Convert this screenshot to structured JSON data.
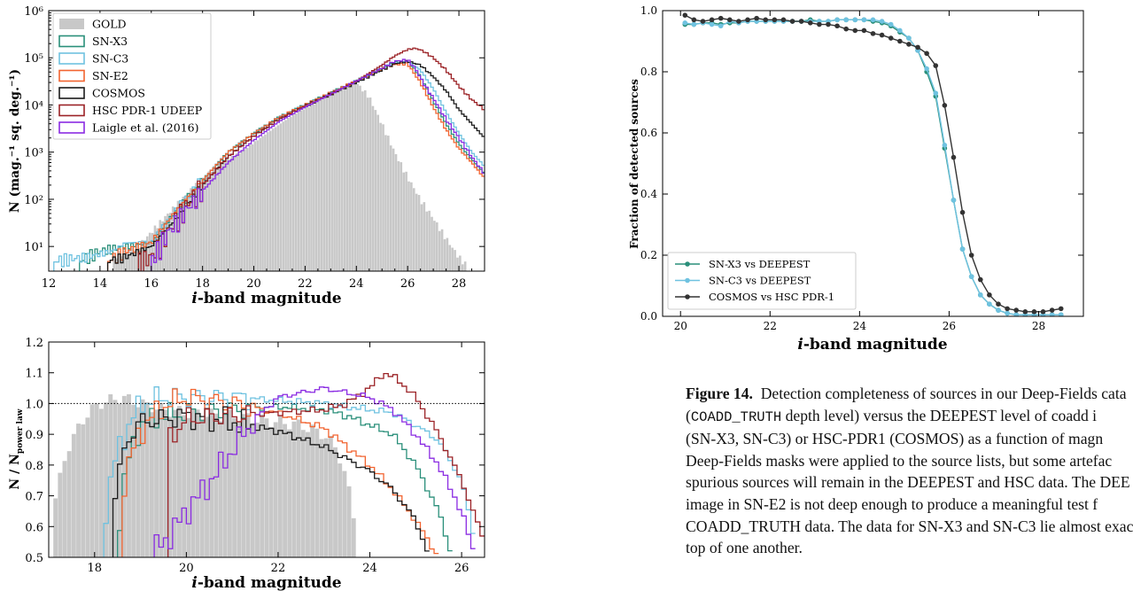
{
  "chart_data": [
    {
      "id": "histogram",
      "type": "area",
      "xlabel_pre": "i",
      "xlabel_post": "-band magnitude",
      "ylabel": "N (mag.⁻¹ sq. deg.⁻¹)",
      "xlim": [
        12,
        29
      ],
      "ylim": [
        3,
        1000000
      ],
      "y_scale": "log",
      "xticks": [
        12,
        14,
        16,
        18,
        20,
        22,
        24,
        26,
        28
      ],
      "yticks": [
        {
          "value": 10,
          "label": "10¹"
        },
        {
          "value": 100,
          "label": "10²"
        },
        {
          "value": 1000,
          "label": "10³"
        },
        {
          "value": 10000,
          "label": "10⁴"
        },
        {
          "value": 100000,
          "label": "10⁵"
        },
        {
          "value": 1000000,
          "label": "10⁶"
        }
      ],
      "legend_position": "top-left",
      "legend": [
        {
          "label": "GOLD",
          "color": "#c8c8c8",
          "style": "filled"
        },
        {
          "label": "SN-X3",
          "color": "#2a8f7a",
          "style": "step"
        },
        {
          "label": "SN-C3",
          "color": "#6fc2e0",
          "style": "step"
        },
        {
          "label": "SN-E2",
          "color": "#f26430",
          "style": "step"
        },
        {
          "label": "COSMOS",
          "color": "#1a1a1a",
          "style": "step"
        },
        {
          "label": "HSC PDR-1 UDEEP",
          "color": "#9b2226",
          "style": "step"
        },
        {
          "label": "Laigle et al. (2016)",
          "color": "#8a2be2",
          "style": "step"
        }
      ],
      "series": [
        {
          "name": "GOLD",
          "x": [
            14.5,
            15.5,
            16.5,
            17.5,
            18.5,
            19.5,
            20.5,
            21.5,
            22.5,
            23.0,
            23.5,
            24.0,
            24.5,
            25.0,
            25.5,
            26.0,
            26.5,
            27.0,
            27.5,
            28.0,
            28.3
          ],
          "y": [
            6,
            10,
            40,
            150,
            500,
            1000,
            2500,
            6000,
            12000,
            18000,
            25000,
            30000,
            15000,
            4000,
            1000,
            300,
            100,
            40,
            15,
            6,
            4
          ]
        },
        {
          "name": "SN-X3",
          "x": [
            13.2,
            14.0,
            15.0,
            16.0,
            17.0,
            18.0,
            19.0,
            20.0,
            21.0,
            22.0,
            23.0,
            24.0,
            25.0,
            25.5,
            26.0,
            26.5,
            27.0,
            27.5,
            28.0,
            28.5,
            29.0
          ],
          "y": [
            5,
            8,
            10,
            12,
            60,
            250,
            1000,
            2500,
            5500,
            10000,
            18000,
            32000,
            60000,
            80000,
            85000,
            40000,
            12000,
            4000,
            1500,
            700,
            350
          ]
        },
        {
          "name": "SN-C3",
          "x": [
            12.2,
            13.5,
            14.5,
            15.0,
            16.0,
            17.0,
            18.0,
            19.0,
            20.0,
            21.0,
            22.0,
            23.0,
            24.0,
            25.0,
            25.5,
            26.0,
            26.5,
            27.0,
            27.5,
            28.0,
            28.5,
            29.0
          ],
          "y": [
            5,
            6,
            8,
            12,
            12,
            60,
            250,
            1000,
            2500,
            5500,
            10000,
            18000,
            32000,
            60000,
            78000,
            85000,
            55000,
            22000,
            7000,
            2500,
            1000,
            500
          ]
        },
        {
          "name": "SN-E2",
          "x": [
            14.3,
            15.0,
            16.0,
            17.0,
            18.0,
            19.0,
            20.0,
            21.0,
            22.0,
            23.0,
            24.0,
            25.0,
            25.5,
            26.0,
            26.5,
            27.0,
            27.5,
            28.0,
            28.5,
            29.0
          ],
          "y": [
            5,
            8,
            12,
            60,
            250,
            1000,
            2500,
            5500,
            10000,
            18000,
            32000,
            58000,
            72000,
            75000,
            30000,
            9000,
            3000,
            1200,
            600,
            280
          ]
        },
        {
          "name": "COSMOS",
          "x": [
            14.3,
            15.0,
            16.0,
            17.0,
            18.0,
            19.0,
            20.0,
            21.0,
            22.0,
            23.0,
            24.0,
            25.0,
            25.5,
            26.0,
            26.5,
            27.0,
            27.5,
            28.0,
            28.5,
            29.0
          ],
          "y": [
            5,
            6,
            10,
            40,
            200,
            800,
            2200,
            5000,
            9500,
            17000,
            30000,
            55000,
            75000,
            85000,
            70000,
            40000,
            20000,
            8000,
            4000,
            2000
          ]
        },
        {
          "name": "HSC PDR-1 UDEEP",
          "x": [
            15.5,
            16.0,
            16.5,
            17.0,
            18.0,
            19.0,
            20.0,
            21.0,
            22.0,
            23.0,
            24.0,
            25.0,
            25.5,
            26.0,
            26.3,
            26.6,
            27.0,
            27.5,
            28.0,
            28.5,
            29.0
          ],
          "y": [
            5,
            6,
            15,
            40,
            200,
            800,
            2200,
            5000,
            9500,
            17000,
            32000,
            70000,
            110000,
            150000,
            160000,
            140000,
            100000,
            55000,
            25000,
            13000,
            8000
          ]
        },
        {
          "name": "Laigle et al. (2016)",
          "x": [
            16.0,
            16.5,
            17.0,
            18.0,
            19.0,
            20.0,
            21.0,
            22.0,
            23.0,
            24.0,
            25.0,
            25.5,
            26.0,
            26.3,
            26.6,
            27.0,
            27.5,
            28.0,
            28.5,
            29.0
          ],
          "y": [
            5,
            15,
            35,
            150,
            600,
            1800,
            4500,
            9000,
            17000,
            32000,
            60000,
            85000,
            90000,
            60000,
            30000,
            14000,
            5000,
            2000,
            800,
            350
          ]
        }
      ]
    },
    {
      "id": "ratio",
      "type": "area",
      "xlabel_pre": "i",
      "xlabel_post": "-band magnitude",
      "ylabel": "N / N",
      "ylabel_sub": "power law",
      "xlim": [
        17,
        26.5
      ],
      "ylim": [
        0.5,
        1.2
      ],
      "xticks": [
        18,
        20,
        22,
        24,
        26
      ],
      "yticks": [
        0.5,
        0.6,
        0.7,
        0.8,
        0.9,
        1.0,
        1.1,
        1.2
      ],
      "reference_line": 1.0,
      "series": [
        {
          "name": "GOLD",
          "x": [
            17.1,
            17.4,
            17.8,
            18.1,
            18.6,
            19.0,
            19.5,
            20.0,
            21.0,
            22.0,
            22.5,
            23.0,
            23.3,
            23.5,
            23.7
          ],
          "y": [
            0.66,
            0.85,
            0.96,
            1.0,
            1.02,
            1.0,
            0.98,
            0.97,
            0.96,
            0.94,
            0.93,
            0.9,
            0.85,
            0.75,
            0.6
          ]
        },
        {
          "name": "SN-X3",
          "x": [
            18.5,
            18.7,
            19.0,
            19.5,
            20.0,
            21.0,
            22.0,
            23.0,
            23.5,
            24.0,
            24.5,
            25.0,
            25.5,
            25.8
          ],
          "y": [
            0.58,
            0.8,
            0.93,
            0.96,
            0.97,
            0.98,
            0.99,
            0.98,
            0.96,
            0.93,
            0.9,
            0.8,
            0.65,
            0.5
          ]
        },
        {
          "name": "SN-C3",
          "x": [
            18.2,
            18.5,
            19.0,
            19.5,
            20.0,
            21.0,
            22.0,
            23.0,
            24.0,
            24.5,
            25.0,
            25.5,
            26.0,
            26.3
          ],
          "y": [
            0.62,
            0.85,
            1.0,
            1.02,
            1.02,
            1.02,
            1.01,
            1.0,
            0.98,
            0.97,
            0.93,
            0.88,
            0.75,
            0.55
          ]
        },
        {
          "name": "SN-E2",
          "x": [
            18.6,
            18.9,
            19.2,
            19.6,
            20.0,
            21.0,
            22.0,
            23.0,
            23.5,
            24.0,
            24.5,
            25.0,
            25.5
          ],
          "y": [
            0.72,
            0.88,
            0.95,
            1.0,
            1.02,
            1.0,
            0.97,
            0.92,
            0.86,
            0.8,
            0.72,
            0.62,
            0.5
          ]
        },
        {
          "name": "COSMOS",
          "x": [
            18.4,
            18.7,
            19.0,
            19.5,
            20.0,
            21.0,
            22.0,
            23.0,
            23.5,
            24.0,
            24.5,
            25.0,
            25.3
          ],
          "y": [
            0.67,
            0.88,
            0.94,
            0.95,
            0.96,
            0.94,
            0.91,
            0.86,
            0.82,
            0.78,
            0.72,
            0.62,
            0.5
          ]
        },
        {
          "name": "HSC PDR-1 UDEEP",
          "x": [
            19.6,
            20.0,
            21.0,
            22.0,
            23.0,
            23.5,
            24.0,
            24.3,
            24.6,
            25.0,
            25.5,
            26.0,
            26.5
          ],
          "y": [
            0.88,
            0.95,
            0.96,
            0.97,
            0.98,
            1.0,
            1.05,
            1.1,
            1.08,
            1.02,
            0.9,
            0.75,
            0.55
          ]
        },
        {
          "name": "Laigle et al. (2016)",
          "x": [
            19.3,
            19.7,
            20.0,
            20.5,
            21.0,
            21.5,
            22.0,
            23.0,
            24.0,
            24.5,
            25.0,
            25.5,
            26.0,
            26.3
          ],
          "y": [
            0.52,
            0.58,
            0.65,
            0.74,
            0.85,
            0.95,
            1.02,
            1.05,
            1.02,
            0.98,
            0.9,
            0.8,
            0.65,
            0.5
          ]
        }
      ]
    },
    {
      "id": "completeness",
      "type": "line",
      "xlabel_pre": "i",
      "xlabel_post": "-band magnitude",
      "ylabel": "Fraction of detected sources",
      "xlim": [
        19.6,
        29.0
      ],
      "ylim": [
        0.0,
        1.0
      ],
      "xticks": [
        20,
        22,
        24,
        26,
        28
      ],
      "yticks": [
        0.0,
        0.2,
        0.4,
        0.6,
        0.8,
        1.0
      ],
      "legend_position": "lower-left",
      "series": [
        {
          "name": "SN-X3 vs DEEPEST",
          "color": "#2a8f7a",
          "x": [
            20.1,
            20.3,
            20.5,
            20.7,
            20.9,
            21.1,
            21.3,
            21.5,
            21.7,
            21.9,
            22.1,
            22.3,
            22.5,
            22.7,
            22.9,
            23.1,
            23.3,
            23.5,
            23.7,
            23.9,
            24.1,
            24.3,
            24.5,
            24.7,
            24.9,
            25.1,
            25.3,
            25.5,
            25.7,
            25.9,
            26.1,
            26.3,
            26.5,
            26.7,
            26.9,
            27.1,
            27.3,
            27.5,
            27.7,
            27.9,
            28.1,
            28.3,
            28.5
          ],
          "y": [
            0.955,
            0.955,
            0.96,
            0.96,
            0.955,
            0.96,
            0.96,
            0.965,
            0.965,
            0.965,
            0.965,
            0.965,
            0.965,
            0.965,
            0.97,
            0.965,
            0.965,
            0.97,
            0.97,
            0.97,
            0.97,
            0.965,
            0.96,
            0.95,
            0.93,
            0.91,
            0.87,
            0.8,
            0.72,
            0.55,
            0.38,
            0.22,
            0.13,
            0.07,
            0.04,
            0.02,
            0.01,
            0.005,
            0.005,
            0.005,
            0.005,
            0.005,
            0.005
          ]
        },
        {
          "name": "SN-C3 vs DEEPEST",
          "color": "#6fc2e0",
          "x": [
            20.1,
            20.3,
            20.5,
            20.7,
            20.9,
            21.1,
            21.3,
            21.5,
            21.7,
            21.9,
            22.1,
            22.3,
            22.5,
            22.7,
            22.9,
            23.1,
            23.3,
            23.5,
            23.7,
            23.9,
            24.1,
            24.3,
            24.5,
            24.7,
            24.9,
            25.1,
            25.3,
            25.5,
            25.7,
            25.9,
            26.1,
            26.3,
            26.5,
            26.7,
            26.9,
            27.1,
            27.3,
            27.5,
            27.7,
            27.9,
            28.1,
            28.3,
            28.5
          ],
          "y": [
            0.96,
            0.955,
            0.96,
            0.955,
            0.95,
            0.965,
            0.96,
            0.965,
            0.965,
            0.965,
            0.965,
            0.965,
            0.965,
            0.965,
            0.965,
            0.965,
            0.965,
            0.97,
            0.97,
            0.97,
            0.97,
            0.97,
            0.965,
            0.955,
            0.935,
            0.91,
            0.87,
            0.81,
            0.73,
            0.56,
            0.38,
            0.22,
            0.13,
            0.07,
            0.04,
            0.02,
            0.01,
            0.005,
            0.005,
            0.005,
            0.005,
            0.005,
            0.005
          ]
        },
        {
          "name": "COSMOS vs HSC PDR-1",
          "color": "#333333",
          "x": [
            20.1,
            20.3,
            20.5,
            20.7,
            20.9,
            21.1,
            21.3,
            21.5,
            21.7,
            21.9,
            22.1,
            22.3,
            22.5,
            22.7,
            22.9,
            23.1,
            23.3,
            23.5,
            23.7,
            23.9,
            24.1,
            24.3,
            24.5,
            24.7,
            24.9,
            25.1,
            25.3,
            25.5,
            25.7,
            25.9,
            26.1,
            26.3,
            26.5,
            26.7,
            26.9,
            27.1,
            27.3,
            27.5,
            27.7,
            27.9,
            28.1,
            28.3,
            28.5
          ],
          "y": [
            0.985,
            0.97,
            0.965,
            0.97,
            0.975,
            0.97,
            0.965,
            0.97,
            0.975,
            0.97,
            0.97,
            0.97,
            0.965,
            0.965,
            0.96,
            0.955,
            0.955,
            0.95,
            0.94,
            0.935,
            0.935,
            0.925,
            0.92,
            0.91,
            0.9,
            0.89,
            0.88,
            0.86,
            0.82,
            0.69,
            0.52,
            0.34,
            0.2,
            0.12,
            0.07,
            0.04,
            0.025,
            0.02,
            0.015,
            0.015,
            0.015,
            0.02,
            0.025
          ]
        }
      ]
    }
  ],
  "caption": {
    "figure_label": "Figure 14.",
    "line1": "Detection completeness of sources in our Deep-Fields cata",
    "line2_code1": "COADD_TRUTH",
    "line2_rest": " depth level) versus the DEEPEST level of coadd i",
    "line3": "(SN-X3, SN-C3) or HSC-PDR1 (COSMOS) as a function of magn",
    "line4": "Deep-Fields masks were applied to the source lists, but some artefac",
    "line5": "spurious sources will remain in the DEEPEST and HSC data. The DEE",
    "line6": "image in SN-E2 is not deep enough to produce a meaningful test f",
    "line7": "COADD_TRUTH data. The data for SN-X3 and SN-C3 lie almost exac",
    "line8": "top of one another."
  }
}
